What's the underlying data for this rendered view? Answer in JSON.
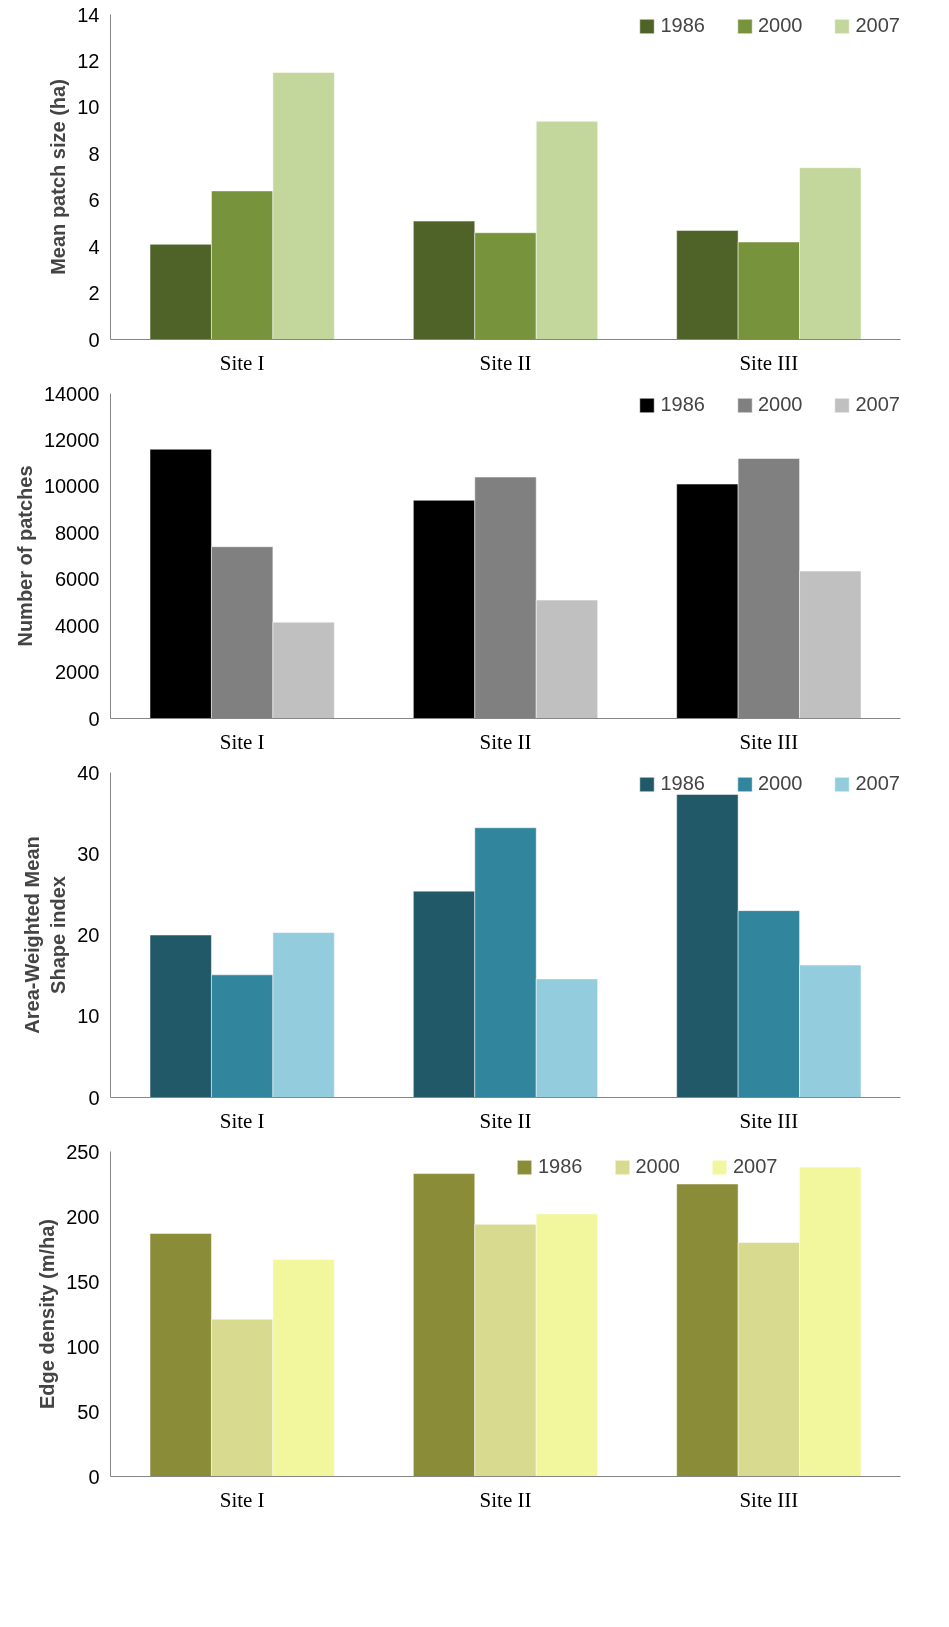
{
  "chart_data": [
    {
      "type": "bar",
      "ylabel": "Mean patch size (ha)",
      "categories": [
        "Site I",
        "Site II",
        "Site III"
      ],
      "ylim": [
        0,
        14
      ],
      "yticks": [
        0,
        2,
        4,
        6,
        8,
        10,
        12,
        14
      ],
      "grid": false,
      "legend": "top right",
      "series": [
        {
          "name": "1986",
          "color": "#4f6228",
          "values": [
            4.1,
            5.1,
            4.7
          ]
        },
        {
          "name": "2000",
          "color": "#77933c",
          "values": [
            6.4,
            4.6,
            4.2
          ]
        },
        {
          "name": "2007",
          "color": "#c3d69b",
          "values": [
            11.5,
            9.4,
            7.4
          ]
        }
      ]
    },
    {
      "type": "bar",
      "ylabel": "Number of patches",
      "categories": [
        "Site I",
        "Site II",
        "Site III"
      ],
      "ylim": [
        0,
        14000
      ],
      "yticks": [
        0,
        2000,
        4000,
        6000,
        8000,
        10000,
        12000,
        14000
      ],
      "grid": false,
      "legend": "top right",
      "series": [
        {
          "name": "1986",
          "color": "#000000",
          "values": [
            11600,
            9400,
            10100
          ]
        },
        {
          "name": "2000",
          "color": "#808080",
          "values": [
            7400,
            10400,
            11200
          ]
        },
        {
          "name": "2007",
          "color": "#c0c0c0",
          "values": [
            4150,
            5100,
            6350
          ]
        }
      ]
    },
    {
      "type": "bar",
      "ylabel": "Area-Weighted Mean\nShape index",
      "categories": [
        "Site I",
        "Site II",
        "Site III"
      ],
      "ylim": [
        0,
        40
      ],
      "yticks": [
        0,
        10,
        20,
        30,
        40
      ],
      "grid": false,
      "legend": "top right",
      "series": [
        {
          "name": "1986",
          "color": "#215968",
          "values": [
            20,
            25.4,
            37.3
          ]
        },
        {
          "name": "2000",
          "color": "#31859c",
          "values": [
            15.1,
            33.2,
            23
          ]
        },
        {
          "name": "2007",
          "color": "#93cddd",
          "values": [
            20.3,
            14.6,
            16.3
          ]
        }
      ]
    },
    {
      "type": "bar",
      "ylabel": "Edge density (m/ha)",
      "categories": [
        "Site I",
        "Site II",
        "Site III"
      ],
      "ylim": [
        0,
        250
      ],
      "yticks": [
        0,
        50,
        100,
        150,
        200,
        250
      ],
      "grid": false,
      "legend": "top",
      "series": [
        {
          "name": "1986",
          "color": "#8a8c37",
          "values": [
            187,
            233,
            225
          ]
        },
        {
          "name": "2000",
          "color": "#d8da8f",
          "values": [
            121,
            194,
            180
          ]
        },
        {
          "name": "2007",
          "color": "#f2f79e",
          "values": [
            167,
            202,
            238
          ]
        }
      ]
    }
  ]
}
